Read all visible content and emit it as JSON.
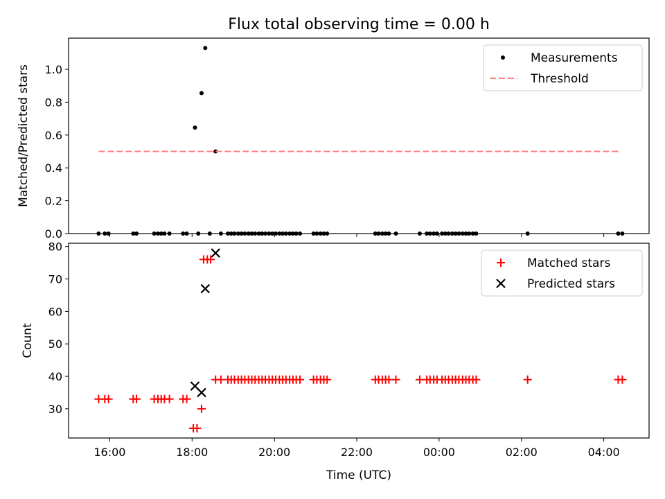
{
  "chart_data": [
    {
      "type": "scatter",
      "title": "Flux total observing time = 0.00 h",
      "xlabel": "",
      "ylabel": "Matched/Predicted stars",
      "ylim": [
        0,
        1.19
      ],
      "xlim_hours": [
        15.0,
        29.1
      ],
      "yticks": [
        "0.0",
        "0.2",
        "0.4",
        "0.6",
        "0.8",
        "1.0"
      ],
      "ytick_values": [
        0,
        0.2,
        0.4,
        0.6,
        0.8,
        1.0
      ],
      "legend_position": "top-right",
      "series": [
        {
          "name": "Measurements",
          "color": "#000000",
          "marker": "dot",
          "points": [
            [
              15.73,
              0
            ],
            [
              15.88,
              0
            ],
            [
              15.97,
              0
            ],
            [
              16.57,
              0
            ],
            [
              16.65,
              0
            ],
            [
              17.08,
              0
            ],
            [
              17.17,
              0
            ],
            [
              17.25,
              0
            ],
            [
              17.33,
              0
            ],
            [
              17.45,
              0
            ],
            [
              17.78,
              0
            ],
            [
              17.87,
              0
            ],
            [
              18.07,
              0.645
            ],
            [
              18.15,
              0
            ],
            [
              18.23,
              0.855
            ],
            [
              18.32,
              1.13
            ],
            [
              18.43,
              0
            ],
            [
              18.57,
              0.5
            ],
            [
              18.7,
              0
            ],
            [
              18.87,
              0
            ],
            [
              18.95,
              0
            ],
            [
              19.03,
              0
            ],
            [
              19.12,
              0
            ],
            [
              19.2,
              0
            ],
            [
              19.28,
              0
            ],
            [
              19.37,
              0
            ],
            [
              19.45,
              0
            ],
            [
              19.53,
              0
            ],
            [
              19.62,
              0
            ],
            [
              19.7,
              0
            ],
            [
              19.78,
              0
            ],
            [
              19.87,
              0
            ],
            [
              19.95,
              0
            ],
            [
              20.03,
              0
            ],
            [
              20.12,
              0
            ],
            [
              20.2,
              0
            ],
            [
              20.28,
              0
            ],
            [
              20.37,
              0
            ],
            [
              20.45,
              0
            ],
            [
              20.53,
              0
            ],
            [
              20.62,
              0
            ],
            [
              20.95,
              0
            ],
            [
              21.03,
              0
            ],
            [
              21.12,
              0
            ],
            [
              21.2,
              0
            ],
            [
              21.28,
              0
            ],
            [
              22.45,
              0
            ],
            [
              22.53,
              0
            ],
            [
              22.62,
              0
            ],
            [
              22.7,
              0
            ],
            [
              22.78,
              0
            ],
            [
              22.95,
              0
            ],
            [
              23.53,
              0
            ],
            [
              23.7,
              0
            ],
            [
              23.78,
              0
            ],
            [
              23.87,
              0
            ],
            [
              23.95,
              0
            ],
            [
              24.07,
              0
            ],
            [
              24.15,
              0
            ],
            [
              24.23,
              0
            ],
            [
              24.32,
              0
            ],
            [
              24.4,
              0
            ],
            [
              24.48,
              0
            ],
            [
              24.57,
              0
            ],
            [
              24.65,
              0
            ],
            [
              24.73,
              0
            ],
            [
              24.82,
              0
            ],
            [
              24.9,
              0
            ],
            [
              26.15,
              0
            ],
            [
              28.35,
              0
            ],
            [
              28.45,
              0
            ]
          ]
        },
        {
          "name": "Threshold",
          "color": "#ff7f7f",
          "style": "dashed",
          "x": [
            15.73,
            28.35
          ],
          "y": [
            0.5,
            0.5
          ]
        }
      ]
    },
    {
      "type": "scatter",
      "title": "",
      "xlabel": "Time (UTC)",
      "ylabel": "Count",
      "ylim": [
        21,
        81
      ],
      "xlim_hours": [
        15.0,
        29.1
      ],
      "yticks": [
        "30",
        "40",
        "50",
        "60",
        "70",
        "80"
      ],
      "ytick_values": [
        30,
        40,
        50,
        60,
        70,
        80
      ],
      "xticks": [
        "16:00",
        "18:00",
        "20:00",
        "22:00",
        "00:00",
        "02:00",
        "04:00"
      ],
      "xtick_values": [
        16,
        18,
        20,
        22,
        24,
        26,
        28
      ],
      "legend_position": "top-right",
      "series": [
        {
          "name": "Matched stars",
          "color": "#ff0000",
          "marker": "plus",
          "points": [
            [
              15.73,
              33
            ],
            [
              15.88,
              33
            ],
            [
              15.97,
              33
            ],
            [
              16.57,
              33
            ],
            [
              16.65,
              33
            ],
            [
              17.08,
              33
            ],
            [
              17.17,
              33
            ],
            [
              17.25,
              33
            ],
            [
              17.33,
              33
            ],
            [
              17.45,
              33
            ],
            [
              17.78,
              33
            ],
            [
              17.87,
              33
            ],
            [
              18.03,
              24
            ],
            [
              18.12,
              24
            ],
            [
              18.23,
              30
            ],
            [
              18.28,
              76
            ],
            [
              18.37,
              76
            ],
            [
              18.45,
              76
            ],
            [
              18.57,
              39
            ],
            [
              18.7,
              39
            ],
            [
              18.87,
              39
            ],
            [
              18.95,
              39
            ],
            [
              19.03,
              39
            ],
            [
              19.12,
              39
            ],
            [
              19.2,
              39
            ],
            [
              19.28,
              39
            ],
            [
              19.37,
              39
            ],
            [
              19.45,
              39
            ],
            [
              19.53,
              39
            ],
            [
              19.62,
              39
            ],
            [
              19.7,
              39
            ],
            [
              19.78,
              39
            ],
            [
              19.87,
              39
            ],
            [
              19.95,
              39
            ],
            [
              20.03,
              39
            ],
            [
              20.12,
              39
            ],
            [
              20.2,
              39
            ],
            [
              20.28,
              39
            ],
            [
              20.37,
              39
            ],
            [
              20.45,
              39
            ],
            [
              20.53,
              39
            ],
            [
              20.62,
              39
            ],
            [
              20.95,
              39
            ],
            [
              21.03,
              39
            ],
            [
              21.12,
              39
            ],
            [
              21.2,
              39
            ],
            [
              21.28,
              39
            ],
            [
              22.45,
              39
            ],
            [
              22.53,
              39
            ],
            [
              22.62,
              39
            ],
            [
              22.7,
              39
            ],
            [
              22.78,
              39
            ],
            [
              22.95,
              39
            ],
            [
              23.53,
              39
            ],
            [
              23.7,
              39
            ],
            [
              23.78,
              39
            ],
            [
              23.87,
              39
            ],
            [
              23.95,
              39
            ],
            [
              24.07,
              39
            ],
            [
              24.15,
              39
            ],
            [
              24.23,
              39
            ],
            [
              24.32,
              39
            ],
            [
              24.4,
              39
            ],
            [
              24.48,
              39
            ],
            [
              24.57,
              39
            ],
            [
              24.65,
              39
            ],
            [
              24.73,
              39
            ],
            [
              24.82,
              39
            ],
            [
              24.9,
              39
            ],
            [
              26.15,
              39
            ],
            [
              28.35,
              39
            ],
            [
              28.45,
              39
            ]
          ]
        },
        {
          "name": "Predicted stars",
          "color": "#000000",
          "marker": "x",
          "points": [
            [
              18.07,
              37
            ],
            [
              18.23,
              35
            ],
            [
              18.32,
              67
            ],
            [
              18.57,
              78
            ]
          ]
        }
      ]
    }
  ]
}
